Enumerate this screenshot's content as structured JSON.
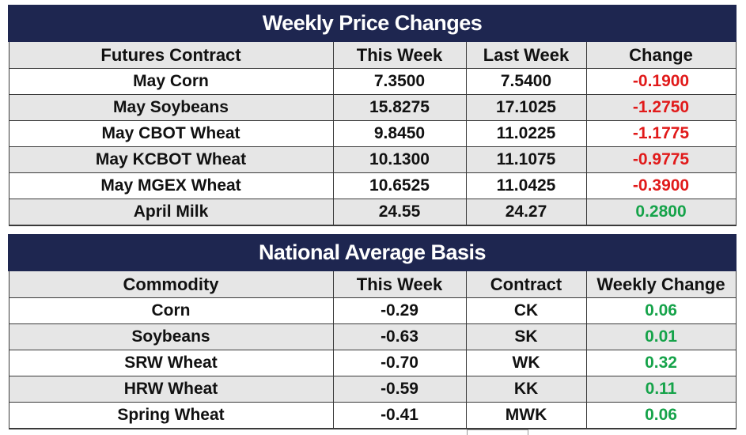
{
  "weekly_prices": {
    "title": "Weekly Price Changes",
    "headers": [
      "Futures Contract",
      "This Week",
      "Last Week",
      "Change"
    ],
    "rows": [
      {
        "contract": "May Corn",
        "this_week": "7.3500",
        "last_week": "7.5400",
        "change": "-0.1900",
        "direction": "down"
      },
      {
        "contract": "May Soybeans",
        "this_week": "15.8275",
        "last_week": "17.1025",
        "change": "-1.2750",
        "direction": "down"
      },
      {
        "contract": "May CBOT Wheat",
        "this_week": "9.8450",
        "last_week": "11.0225",
        "change": "-1.1775",
        "direction": "down"
      },
      {
        "contract": "May KCBOT Wheat",
        "this_week": "10.1300",
        "last_week": "11.1075",
        "change": "-0.9775",
        "direction": "down"
      },
      {
        "contract": "May MGEX Wheat",
        "this_week": "10.6525",
        "last_week": "11.0425",
        "change": "-0.3900",
        "direction": "down"
      },
      {
        "contract": "April Milk",
        "this_week": "24.55",
        "last_week": "24.27",
        "change": "0.2800",
        "direction": "up"
      }
    ]
  },
  "basis": {
    "title": "National Average Basis",
    "headers": [
      "Commodity",
      "This Week",
      "Contract",
      "Weekly Change"
    ],
    "rows": [
      {
        "commodity": "Corn",
        "this_week": "-0.29",
        "contract": "CK",
        "weekly_change": "0.06"
      },
      {
        "commodity": "Soybeans",
        "this_week": "-0.63",
        "contract": "SK",
        "weekly_change": "0.01"
      },
      {
        "commodity": "SRW Wheat",
        "this_week": "-0.70",
        "contract": "WK",
        "weekly_change": "0.32"
      },
      {
        "commodity": "HRW Wheat",
        "this_week": "-0.59",
        "contract": "KK",
        "weekly_change": "0.11"
      },
      {
        "commodity": "Spring Wheat",
        "this_week": "-0.41",
        "contract": "MWK",
        "weekly_change": "0.06"
      }
    ]
  },
  "colors": {
    "header_navy": "#1e2650",
    "stripe_gray": "#e6e6e6",
    "negative_red": "#e11a1a",
    "positive_green": "#16a34a"
  }
}
